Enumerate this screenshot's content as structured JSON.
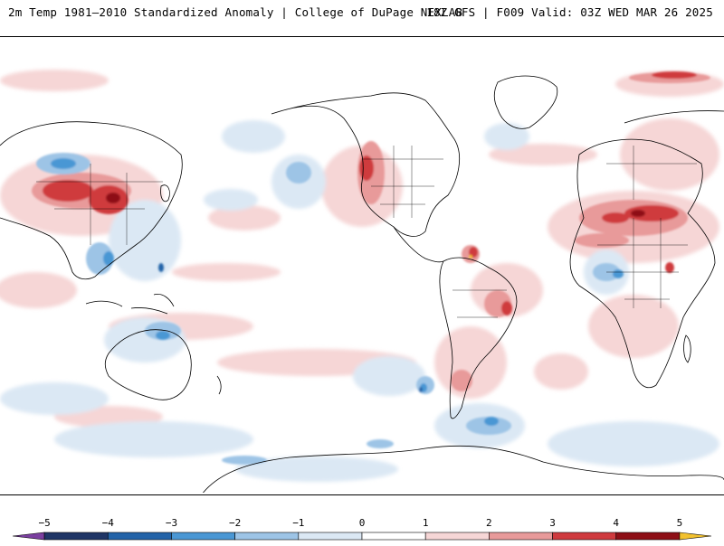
{
  "header": {
    "left_title": "2m Temp 1981–2010 Standardized Anomaly | College of DuPage NEXLAB",
    "right_title": "18Z GFS | F009 Valid: 03Z WED MAR 26 2025"
  },
  "map": {
    "projection": "equirectangular",
    "center_longitude": "pacific",
    "variable": "2m temperature standardized anomaly",
    "colors": {
      "coastline": "#000000",
      "borders": "#000000",
      "background": "#ffffff"
    }
  },
  "colorbar": {
    "ticks": [
      "−5",
      "−4",
      "−3",
      "−2",
      "−1",
      "0",
      "1",
      "2",
      "3",
      "4",
      "5"
    ],
    "tick_values": [
      -5,
      -4,
      -3,
      -2,
      -1,
      0,
      1,
      2,
      3,
      4,
      5
    ],
    "range": [
      -5.5,
      5.5
    ],
    "segments": [
      {
        "from": -5.5,
        "to": -5,
        "color": "#7b3fa0"
      },
      {
        "from": -5,
        "to": -4,
        "color": "#1f3566"
      },
      {
        "from": -4,
        "to": -3,
        "color": "#2363a8"
      },
      {
        "from": -3,
        "to": -2,
        "color": "#4a97d4"
      },
      {
        "from": -2,
        "to": -1,
        "color": "#9dc4e6"
      },
      {
        "from": -1,
        "to": 0,
        "color": "#dbe8f4"
      },
      {
        "from": 0,
        "to": 1,
        "color": "#ffffff"
      },
      {
        "from": 1,
        "to": 2,
        "color": "#f6d6d6"
      },
      {
        "from": 2,
        "to": 3,
        "color": "#e89a9a"
      },
      {
        "from": 3,
        "to": 4,
        "color": "#cf3a3e"
      },
      {
        "from": 4,
        "to": 5,
        "color": "#8e0f16"
      },
      {
        "from": 5,
        "to": 5.5,
        "color": "#f2c12e"
      }
    ]
  }
}
